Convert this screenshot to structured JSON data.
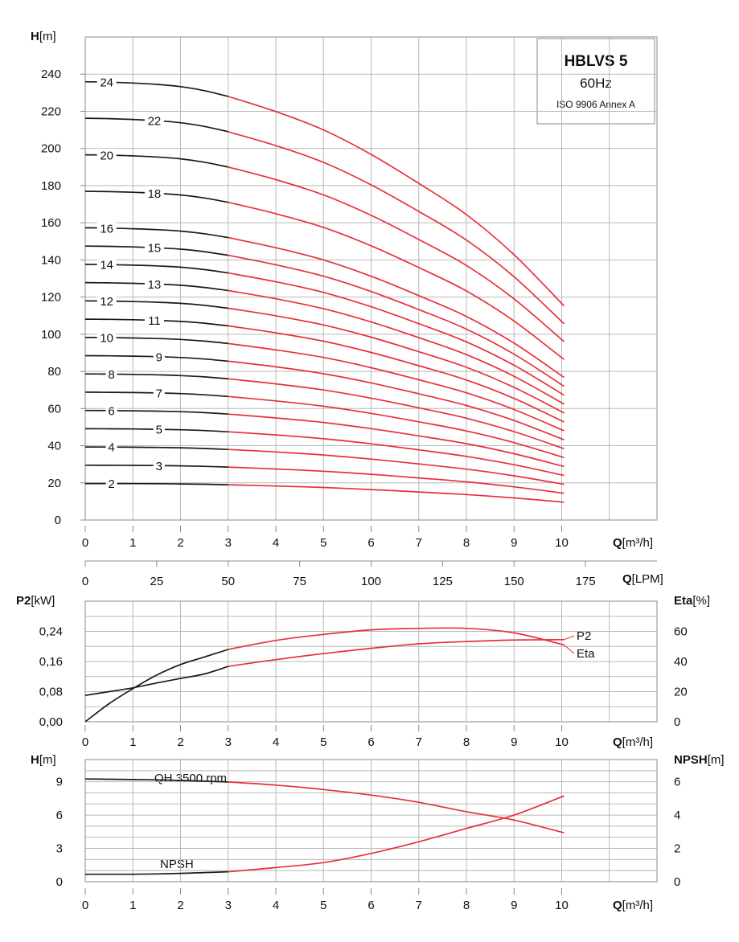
{
  "chart_data": [
    {
      "type": "line",
      "title_box": {
        "title": "HBLVS 5",
        "line1": "60Hz",
        "line2": "ISO 9906 Annex A"
      },
      "y_label": {
        "bold": "H",
        "unit": "[m]"
      },
      "x_label": {
        "bold": "Q",
        "unit": "[m³/h]"
      },
      "x2_label": {
        "bold": "Q",
        "unit": "[LPM]"
      },
      "xlim": [
        0,
        12
      ],
      "ylim": [
        0,
        260
      ],
      "x_ticks": [
        "0",
        "1",
        "2",
        "3",
        "4",
        "5",
        "6",
        "7",
        "8",
        "9",
        "10"
      ],
      "x2_ticks": [
        "0",
        "25",
        "50",
        "75",
        "100",
        "125",
        "150",
        "175"
      ],
      "y_ticks": [
        "0",
        "20",
        "40",
        "60",
        "80",
        "100",
        "120",
        "140",
        "160",
        "180",
        "200",
        "220",
        "240"
      ],
      "grid": true,
      "flow_points": [
        0,
        0.5,
        1,
        1.5,
        2,
        2.5,
        3,
        4,
        5,
        6,
        7,
        8,
        9,
        10.05
      ],
      "operating_range_start": 3,
      "colors": {
        "outside_range": "#1a1a1a",
        "operating_range": "#e8303a"
      },
      "base_curve_per_stage": [
        9.83,
        9.82,
        9.8,
        9.77,
        9.72,
        9.63,
        9.5,
        9.16,
        8.75,
        8.2,
        7.55,
        6.85,
        5.95,
        4.8
      ],
      "series": [
        {
          "name": "24",
          "stages": 24,
          "label_q": 0.45
        },
        {
          "name": "22",
          "stages": 22,
          "label_q": 1.45
        },
        {
          "name": "20",
          "stages": 20,
          "label_q": 0.45
        },
        {
          "name": "18",
          "stages": 18,
          "label_q": 1.45
        },
        {
          "name": "16",
          "stages": 16,
          "label_q": 0.45
        },
        {
          "name": "15",
          "stages": 15,
          "label_q": 1.45
        },
        {
          "name": "14",
          "stages": 14,
          "label_q": 0.45
        },
        {
          "name": "13",
          "stages": 13,
          "label_q": 1.45
        },
        {
          "name": "12",
          "stages": 12,
          "label_q": 0.45
        },
        {
          "name": "11",
          "stages": 11,
          "label_q": 1.45
        },
        {
          "name": "10",
          "stages": 10,
          "label_q": 0.45
        },
        {
          "name": "9",
          "stages": 9,
          "label_q": 1.55
        },
        {
          "name": "8",
          "stages": 8,
          "label_q": 0.55
        },
        {
          "name": "7",
          "stages": 7,
          "label_q": 1.55
        },
        {
          "name": "6",
          "stages": 6,
          "label_q": 0.55
        },
        {
          "name": "5",
          "stages": 5,
          "label_q": 1.55
        },
        {
          "name": "4",
          "stages": 4,
          "label_q": 0.55
        },
        {
          "name": "3",
          "stages": 3,
          "label_q": 1.55
        },
        {
          "name": "2",
          "stages": 2,
          "label_q": 0.55
        }
      ]
    },
    {
      "type": "line",
      "left_label": {
        "bold": "P2",
        "unit": "[kW]"
      },
      "right_label": {
        "bold": "Eta",
        "unit": "[%]"
      },
      "x_label": {
        "bold": "Q",
        "unit": "[m³/h]"
      },
      "xlim": [
        0,
        12
      ],
      "ylim_left": [
        0,
        0.32
      ],
      "ylim_right": [
        0,
        80
      ],
      "x_ticks": [
        "0",
        "1",
        "2",
        "3",
        "4",
        "5",
        "6",
        "7",
        "8",
        "9",
        "10"
      ],
      "y_ticks_left": [
        "0,00",
        "0,08",
        "0,16",
        "0,24"
      ],
      "y_ticks_right": [
        "0",
        "20",
        "40",
        "60"
      ],
      "grid": true,
      "operating_range_start": 3,
      "series": [
        {
          "name": "P2",
          "axis": "left",
          "x": [
            0,
            0.5,
            1,
            1.5,
            2,
            2.5,
            3,
            4,
            5,
            6,
            7,
            8,
            9,
            10.05
          ],
          "y": [
            0.07,
            0.08,
            0.09,
            0.103,
            0.115,
            0.127,
            0.147,
            0.165,
            0.181,
            0.195,
            0.207,
            0.213,
            0.217,
            0.218
          ]
        },
        {
          "name": "Eta",
          "axis": "right",
          "x": [
            0,
            0.5,
            1,
            1.5,
            2,
            2.5,
            3,
            4,
            5,
            6,
            7,
            8,
            9,
            10.05
          ],
          "y": [
            0,
            12,
            22,
            31,
            38,
            43,
            48,
            54,
            58,
            61,
            62,
            62,
            59,
            51
          ]
        }
      ]
    },
    {
      "type": "line",
      "left_label": {
        "bold": "H",
        "unit": "[m]"
      },
      "right_label": {
        "bold": "NPSH",
        "unit": "[m]"
      },
      "x_label": {
        "bold": "Q",
        "unit": "[m³/h]"
      },
      "xlim": [
        0,
        12
      ],
      "ylim_left": [
        0,
        11
      ],
      "ylim_right": [
        0,
        7.333
      ],
      "x_ticks": [
        "0",
        "1",
        "2",
        "3",
        "4",
        "5",
        "6",
        "7",
        "8",
        "9",
        "10"
      ],
      "y_ticks_left": [
        "0",
        "3",
        "6",
        "9"
      ],
      "y_ticks_right": [
        "0",
        "2",
        "4",
        "6"
      ],
      "grid": true,
      "operating_range_start": 3,
      "series": [
        {
          "name": "QH 3500 rpm",
          "axis": "left",
          "x": [
            0,
            0.5,
            1,
            1.5,
            2,
            2.5,
            3,
            4,
            5,
            6,
            7,
            8,
            9,
            10.05
          ],
          "y": [
            9.25,
            9.23,
            9.2,
            9.17,
            9.12,
            9.05,
            8.98,
            8.7,
            8.3,
            7.8,
            7.15,
            6.3,
            5.55,
            4.4
          ]
        },
        {
          "name": "NPSH",
          "axis": "right",
          "x": [
            0,
            0.5,
            1,
            1.5,
            2,
            2.5,
            3,
            4,
            5,
            6,
            7,
            8,
            9,
            10.05
          ],
          "y": [
            0.45,
            0.45,
            0.45,
            0.47,
            0.5,
            0.55,
            0.6,
            0.85,
            1.15,
            1.7,
            2.4,
            3.2,
            4.0,
            5.15
          ]
        }
      ]
    }
  ]
}
